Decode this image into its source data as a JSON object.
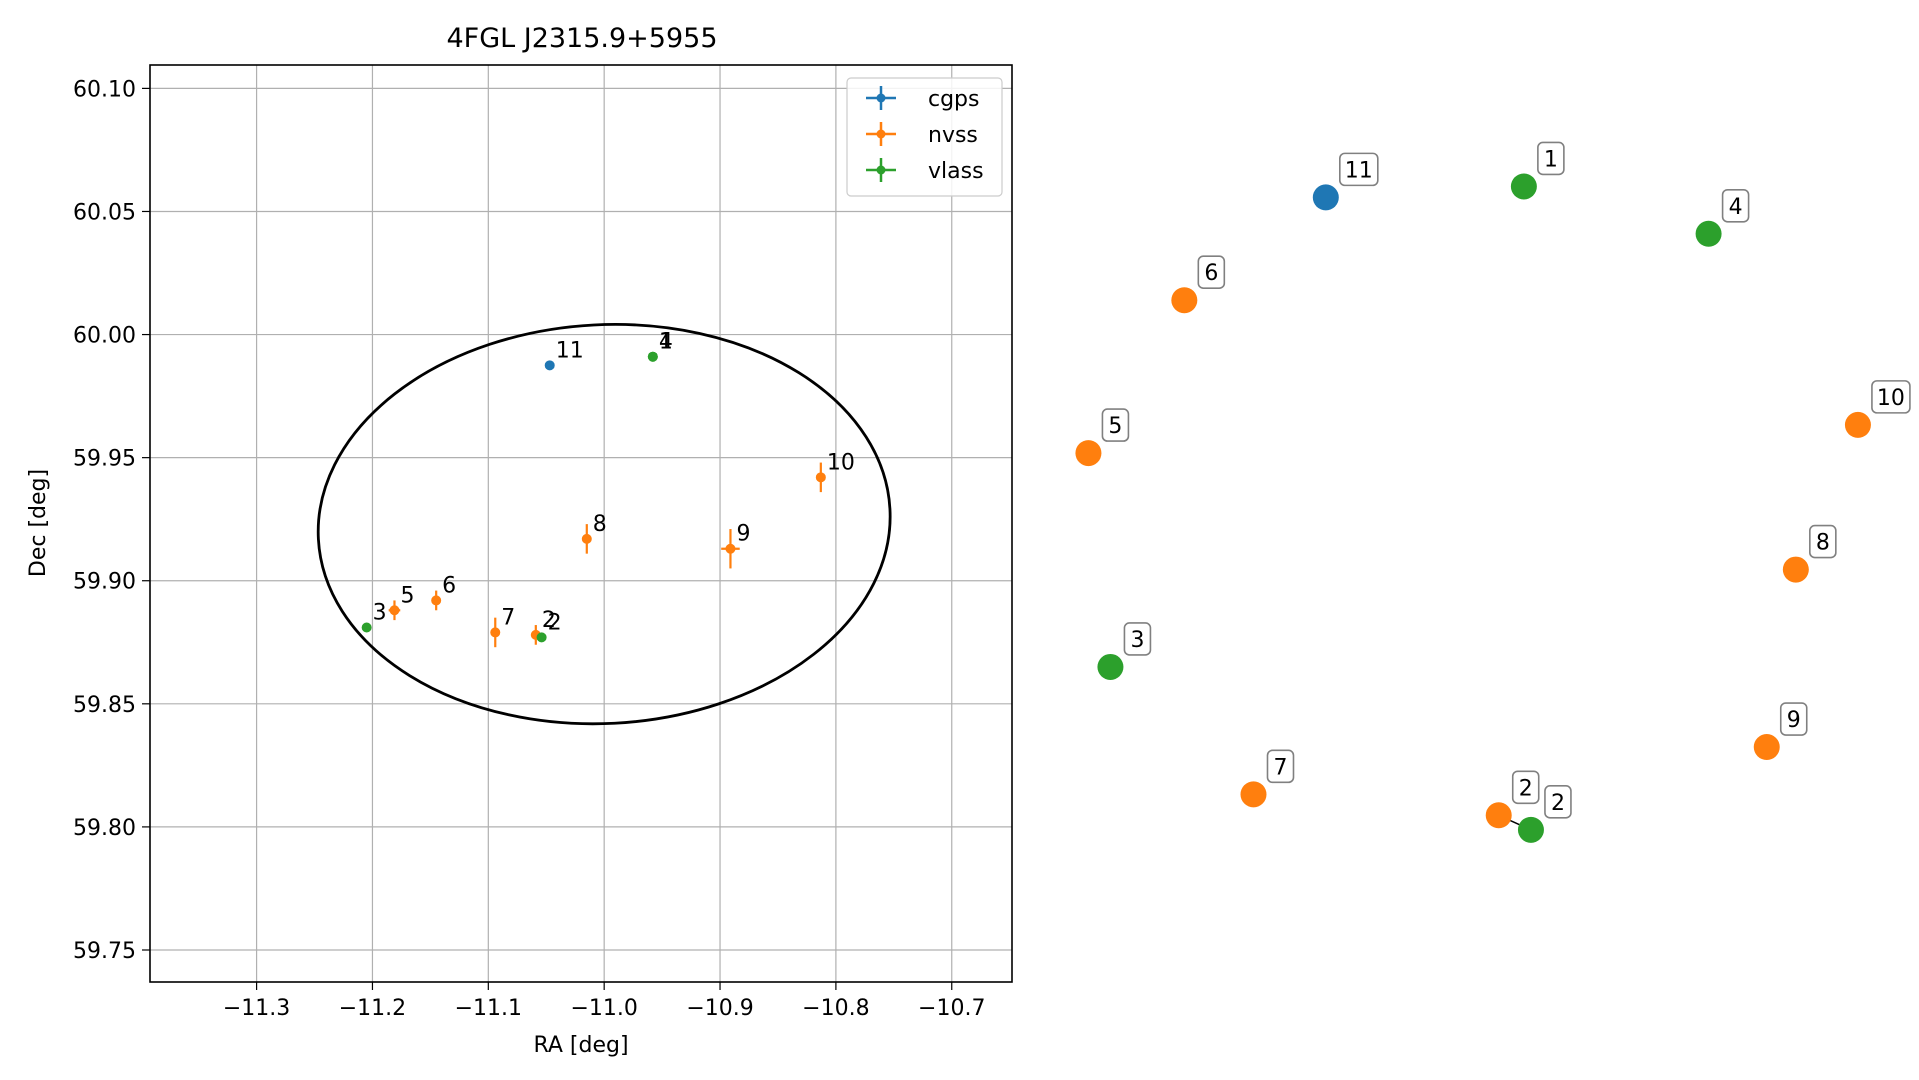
{
  "colors": {
    "cgps": "#1f77b4",
    "nvss": "#ff7f0e",
    "vlass": "#2ca02c",
    "grid": "#b0b0b0",
    "ellipse": "#000000"
  },
  "chart_data": [
    {
      "type": "scatter",
      "title": "4FGL J2315.9+5955",
      "xlabel": "RA [deg]",
      "ylabel": "Dec [deg]",
      "xlim": [
        -11.392,
        -10.648
      ],
      "ylim": [
        59.737,
        60.1095
      ],
      "grid": true,
      "legend_position": "top-right",
      "xticks": [
        -11.3,
        -11.2,
        -11.1,
        -11.0,
        -10.9,
        -10.8,
        -10.7
      ],
      "xtick_labels": [
        "−11.3",
        "−11.2",
        "−11.1",
        "−11.0",
        "−10.9",
        "−10.8",
        "−10.7"
      ],
      "yticks": [
        59.75,
        59.8,
        59.85,
        59.9,
        59.95,
        60.0,
        60.05,
        60.1
      ],
      "ytick_labels": [
        "59.75",
        "59.80",
        "59.85",
        "59.90",
        "59.95",
        "60.00",
        "60.05",
        "60.10"
      ],
      "ellipse": {
        "center": [
          -11.0,
          59.923
        ],
        "semi_axes_deg": [
          0.247,
          0.081
        ]
      },
      "legend": [
        "cgps",
        "nvss",
        "vlass"
      ],
      "series": [
        {
          "name": "cgps",
          "points": [
            {
              "label": "11",
              "ra": -11.047,
              "dec": 59.9875,
              "ra_err": 0.0,
              "dec_err": 0.0
            }
          ]
        },
        {
          "name": "nvss",
          "points": [
            {
              "label": "5",
              "ra": -11.181,
              "dec": 59.888,
              "ra_err": 0.005,
              "dec_err": 0.004
            },
            {
              "label": "6",
              "ra": -11.145,
              "dec": 59.892,
              "ra_err": 0.004,
              "dec_err": 0.004
            },
            {
              "label": "7",
              "ra": -11.094,
              "dec": 59.879,
              "ra_err": 0.004,
              "dec_err": 0.006
            },
            {
              "label": "2",
              "ra": -11.059,
              "dec": 59.878,
              "ra_err": 0.004,
              "dec_err": 0.004
            },
            {
              "label": "8",
              "ra": -11.015,
              "dec": 59.917,
              "ra_err": 0.004,
              "dec_err": 0.006
            },
            {
              "label": "9",
              "ra": -10.891,
              "dec": 59.913,
              "ra_err": 0.008,
              "dec_err": 0.008
            },
            {
              "label": "10",
              "ra": -10.813,
              "dec": 59.942,
              "ra_err": 0.004,
              "dec_err": 0.006
            }
          ]
        },
        {
          "name": "vlass",
          "points": [
            {
              "label": "3",
              "ra": -11.205,
              "dec": 59.881,
              "ra_err": 0.0,
              "dec_err": 0.0
            },
            {
              "label": "2",
              "ra": -11.054,
              "dec": 59.877,
              "ra_err": 0.0,
              "dec_err": 0.0
            },
            {
              "label": "1",
              "ra": -10.958,
              "dec": 59.991,
              "ra_err": 0.0,
              "dec_err": 0.0
            },
            {
              "label": "4",
              "ra": -10.958,
              "dec": 59.991,
              "ra_err": 0.0,
              "dec_err": 0.0
            }
          ]
        }
      ]
    },
    {
      "type": "scatter",
      "title": "",
      "xlabel": "",
      "ylabel": "",
      "grid": false,
      "axes_visible": false,
      "xlim": [
        0,
        1
      ],
      "ylim": [
        0,
        1
      ],
      "points": [
        {
          "label": "11",
          "series": "cgps",
          "x": 0.314,
          "y": 0.882
        },
        {
          "label": "1",
          "series": "vlass",
          "x": 0.566,
          "y": 0.894
        },
        {
          "label": "4",
          "series": "vlass",
          "x": 0.801,
          "y": 0.842
        },
        {
          "label": "6",
          "series": "nvss",
          "x": 0.134,
          "y": 0.769
        },
        {
          "label": "10",
          "series": "nvss",
          "x": 0.991,
          "y": 0.632
        },
        {
          "label": "5",
          "series": "nvss",
          "x": 0.012,
          "y": 0.601
        },
        {
          "label": "8",
          "series": "nvss",
          "x": 0.912,
          "y": 0.473
        },
        {
          "label": "3",
          "series": "vlass",
          "x": 0.04,
          "y": 0.366
        },
        {
          "label": "9",
          "series": "nvss",
          "x": 0.875,
          "y": 0.278
        },
        {
          "label": "7",
          "series": "nvss",
          "x": 0.222,
          "y": 0.226
        },
        {
          "label": "2",
          "series": "nvss",
          "x": 0.534,
          "y": 0.203
        },
        {
          "label": "2",
          "series": "vlass",
          "x": 0.575,
          "y": 0.187
        }
      ]
    }
  ]
}
